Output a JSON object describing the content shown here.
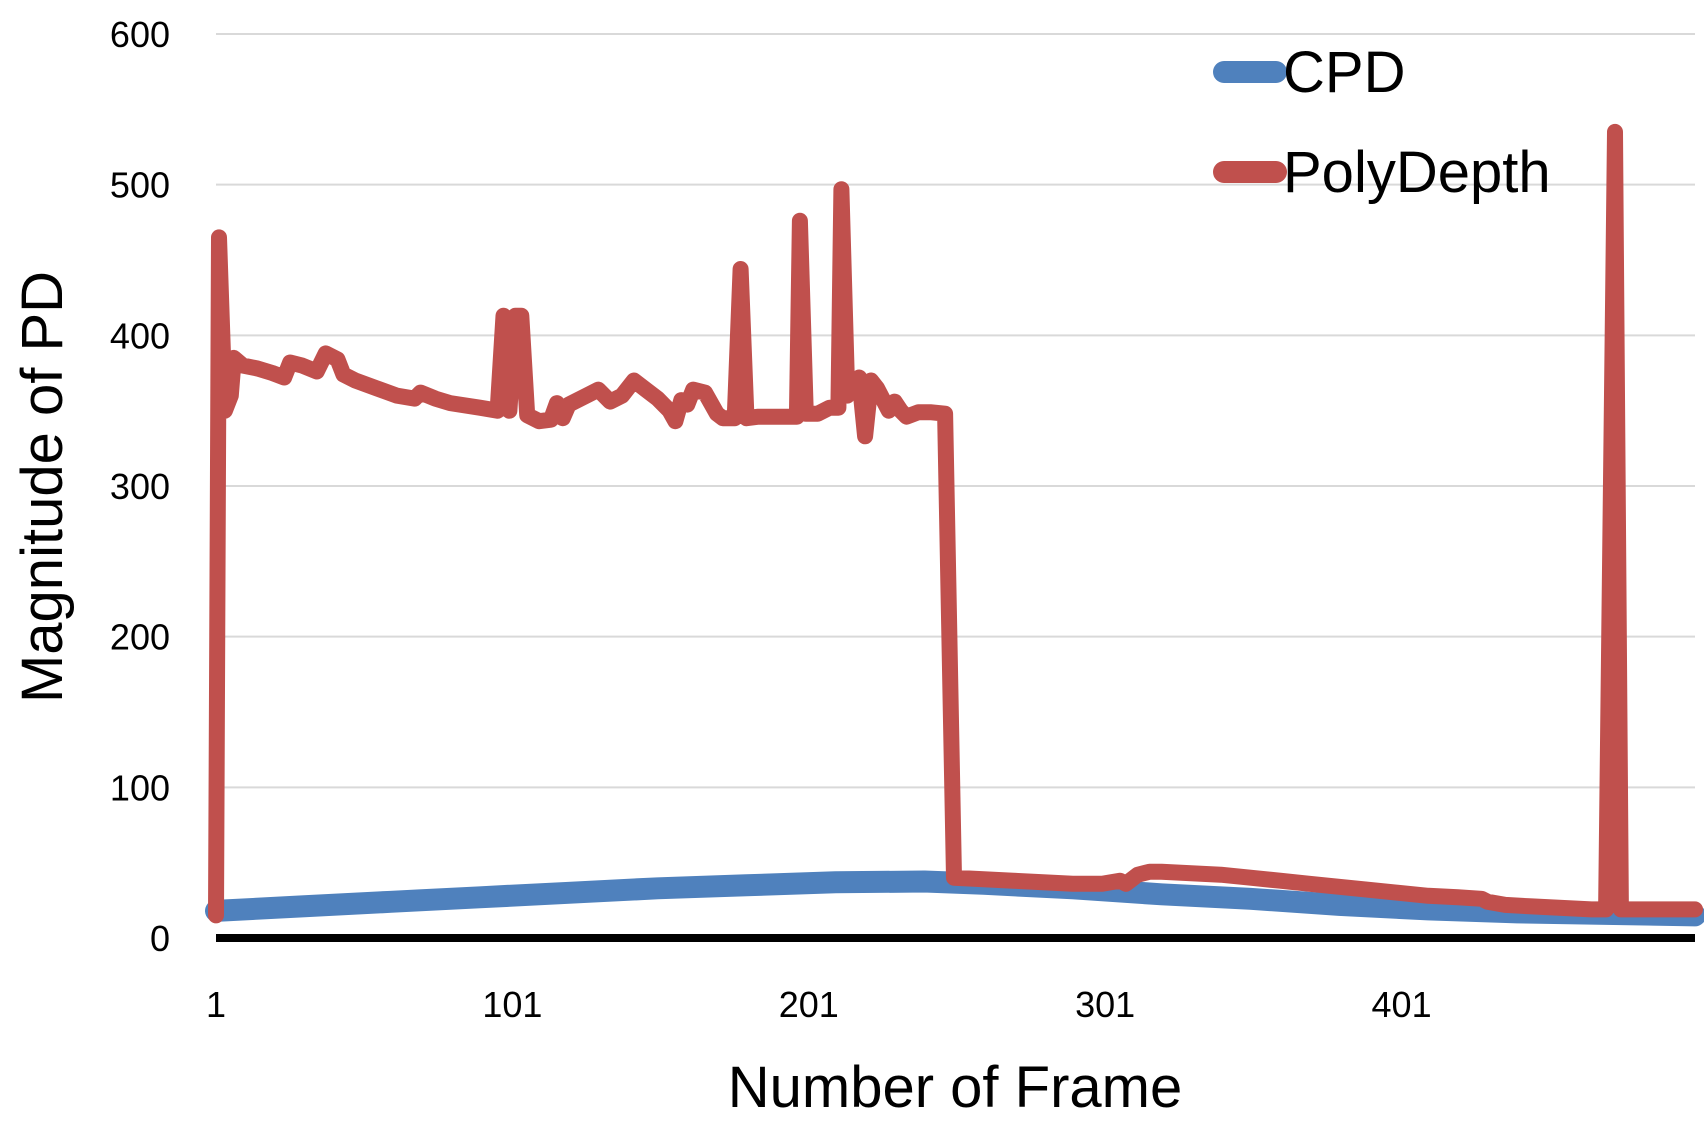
{
  "chart_data": {
    "type": "line",
    "title": "",
    "xlabel": "Number of Frame",
    "ylabel": "Magnitude of PD",
    "xlim": [
      1,
      500
    ],
    "ylim": [
      0,
      600
    ],
    "x_ticks": [
      1,
      101,
      201,
      301,
      401
    ],
    "x_tick_labels": [
      "1",
      "101",
      "201",
      "301",
      "401"
    ],
    "y_ticks": [
      0,
      100,
      200,
      300,
      400,
      500,
      600
    ],
    "y_tick_labels": [
      "0",
      "100",
      "200",
      "300",
      "400",
      "500",
      "600"
    ],
    "grid": "horizontal",
    "legend_position": "top-right",
    "series": [
      {
        "name": "CPD",
        "color": "#4f81bd",
        "points": [
          [
            1,
            18
          ],
          [
            30,
            21
          ],
          [
            60,
            24
          ],
          [
            90,
            27
          ],
          [
            120,
            30
          ],
          [
            150,
            33
          ],
          [
            180,
            35
          ],
          [
            210,
            37
          ],
          [
            240,
            37.5
          ],
          [
            260,
            36
          ],
          [
            290,
            33
          ],
          [
            320,
            29
          ],
          [
            350,
            26
          ],
          [
            380,
            22
          ],
          [
            410,
            19
          ],
          [
            440,
            17
          ],
          [
            470,
            16
          ],
          [
            500,
            15
          ]
        ]
      },
      {
        "name": "PolyDepth",
        "color": "#c0504d",
        "points": [
          [
            1,
            15
          ],
          [
            2,
            465
          ],
          [
            4,
            350
          ],
          [
            6,
            360
          ],
          [
            7,
            385
          ],
          [
            10,
            380
          ],
          [
            15,
            378
          ],
          [
            20,
            375
          ],
          [
            24,
            372
          ],
          [
            26,
            382
          ],
          [
            30,
            380
          ],
          [
            35,
            376
          ],
          [
            38,
            388
          ],
          [
            42,
            384
          ],
          [
            44,
            374
          ],
          [
            48,
            370
          ],
          [
            55,
            365
          ],
          [
            62,
            360
          ],
          [
            68,
            358
          ],
          [
            70,
            362
          ],
          [
            75,
            358
          ],
          [
            80,
            355
          ],
          [
            90,
            352
          ],
          [
            96,
            350
          ],
          [
            98,
            413
          ],
          [
            100,
            350
          ],
          [
            102,
            413
          ],
          [
            104,
            413
          ],
          [
            106,
            347
          ],
          [
            110,
            343
          ],
          [
            114,
            344
          ],
          [
            116,
            355
          ],
          [
            118,
            345
          ],
          [
            120,
            354
          ],
          [
            126,
            360
          ],
          [
            130,
            364
          ],
          [
            134,
            356
          ],
          [
            138,
            360
          ],
          [
            142,
            370
          ],
          [
            146,
            364
          ],
          [
            150,
            358
          ],
          [
            154,
            350
          ],
          [
            156,
            343
          ],
          [
            158,
            357
          ],
          [
            160,
            354
          ],
          [
            162,
            364
          ],
          [
            166,
            362
          ],
          [
            170,
            348
          ],
          [
            172,
            345
          ],
          [
            176,
            345
          ],
          [
            178,
            444
          ],
          [
            180,
            345
          ],
          [
            184,
            346
          ],
          [
            188,
            346
          ],
          [
            192,
            346
          ],
          [
            197,
            346
          ],
          [
            198,
            476
          ],
          [
            200,
            348
          ],
          [
            204,
            348
          ],
          [
            206,
            350
          ],
          [
            208,
            352
          ],
          [
            211,
            352
          ],
          [
            212,
            497
          ],
          [
            214,
            360
          ],
          [
            218,
            372
          ],
          [
            220,
            333
          ],
          [
            222,
            370
          ],
          [
            224,
            365
          ],
          [
            228,
            350
          ],
          [
            230,
            356
          ],
          [
            232,
            350
          ],
          [
            234,
            346
          ],
          [
            238,
            349
          ],
          [
            242,
            349
          ],
          [
            247,
            348
          ],
          [
            250,
            40
          ],
          [
            260,
            39
          ],
          [
            270,
            38
          ],
          [
            280,
            37
          ],
          [
            290,
            36
          ],
          [
            300,
            36
          ],
          [
            306,
            38
          ],
          [
            308,
            36
          ],
          [
            312,
            42
          ],
          [
            316,
            44
          ],
          [
            320,
            44
          ],
          [
            330,
            43
          ],
          [
            340,
            42
          ],
          [
            350,
            40
          ],
          [
            360,
            38
          ],
          [
            370,
            36
          ],
          [
            380,
            34
          ],
          [
            390,
            32
          ],
          [
            400,
            30
          ],
          [
            410,
            28
          ],
          [
            420,
            27
          ],
          [
            428,
            26
          ],
          [
            430,
            24
          ],
          [
            436,
            22
          ],
          [
            445,
            21
          ],
          [
            455,
            20
          ],
          [
            465,
            19
          ],
          [
            470,
            19
          ],
          [
            473,
            535
          ],
          [
            475,
            19
          ],
          [
            480,
            19
          ],
          [
            490,
            19
          ],
          [
            500,
            19
          ]
        ]
      }
    ],
    "legend": [
      {
        "label": "CPD",
        "color": "#4f81bd"
      },
      {
        "label": "PolyDepth",
        "color": "#c0504d"
      }
    ]
  }
}
